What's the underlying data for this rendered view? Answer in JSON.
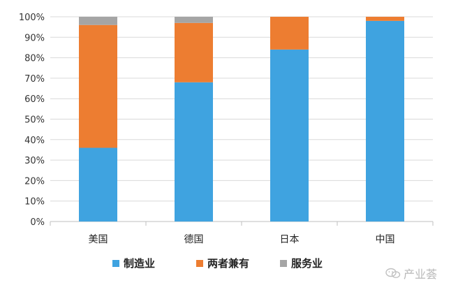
{
  "chart_data": {
    "type": "bar",
    "stacked": true,
    "categories": [
      "美国",
      "德国",
      "日本",
      "中国"
    ],
    "series": [
      {
        "name": "制造业",
        "values": [
          36,
          68,
          84,
          98
        ],
        "color": "#3fa3e0"
      },
      {
        "name": "两者兼有",
        "values": [
          60,
          29,
          16,
          2
        ],
        "color": "#ed7d31"
      },
      {
        "name": "服务业",
        "values": [
          4,
          3,
          0,
          0
        ],
        "color": "#a5a5a5"
      }
    ],
    "ylim": [
      0,
      100
    ],
    "yticks": [
      "0%",
      "10%",
      "20%",
      "30%",
      "40%",
      "50%",
      "60%",
      "70%",
      "80%",
      "90%",
      "100%"
    ],
    "grid": true,
    "legend": "bottom"
  },
  "watermark": {
    "text": "产业荟",
    "icon": "wechat-icon"
  }
}
